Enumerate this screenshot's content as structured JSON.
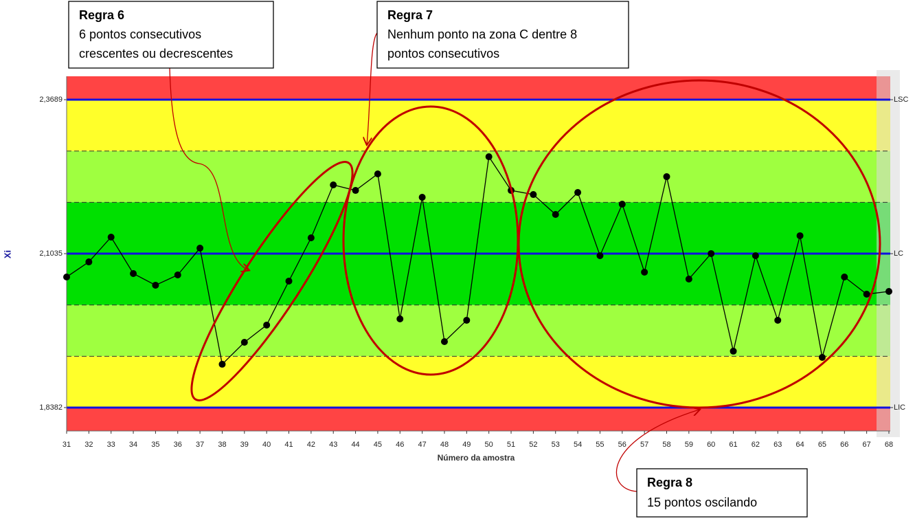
{
  "chart_data": {
    "type": "line",
    "y_label": "Xi",
    "x_label": "Número da amostra",
    "x": [
      31,
      32,
      33,
      34,
      35,
      36,
      37,
      38,
      39,
      40,
      41,
      42,
      43,
      44,
      45,
      46,
      47,
      48,
      49,
      50,
      51,
      52,
      53,
      54,
      55,
      56,
      57,
      58,
      59,
      60,
      61,
      62,
      63,
      64,
      65,
      66,
      67,
      68
    ],
    "series": [
      {
        "color": "#000000",
        "values": [
          2.0633,
          2.0893,
          2.132,
          2.0692,
          2.0491,
          2.0668,
          2.113,
          1.9129,
          1.9507,
          1.9804,
          2.0562,
          2.1308,
          2.222,
          2.2125,
          2.241,
          1.991,
          2.2007,
          1.9519,
          1.9887,
          2.2706,
          2.2125,
          2.2054,
          2.1711,
          2.209,
          2.1,
          2.1888,
          2.0716,
          2.2362,
          2.0597,
          2.1036,
          1.9354,
          2.1,
          1.9887,
          2.1344,
          1.9247,
          2.0633,
          2.0337,
          2.0384
        ]
      }
    ],
    "xlim": [
      31,
      68
    ],
    "xticks": [
      31,
      32,
      33,
      34,
      35,
      36,
      37,
      38,
      39,
      40,
      41,
      42,
      43,
      44,
      45,
      46,
      47,
      48,
      49,
      50,
      51,
      52,
      53,
      54,
      55,
      56,
      57,
      58,
      59,
      60,
      61,
      62,
      63,
      64,
      65,
      66,
      67,
      68
    ],
    "ylim": [
      1.7979,
      2.4092
    ],
    "yticks": [
      {
        "value": 2.3689,
        "label": "2,3689"
      },
      {
        "value": 2.1035,
        "label": "2,1035"
      },
      {
        "value": 1.8382,
        "label": "1,8382"
      }
    ],
    "control_lines": [
      {
        "label": "LSC",
        "value": 2.3689
      },
      {
        "label": "LC",
        "value": 2.1035
      },
      {
        "label": "LIC",
        "value": 1.8382
      }
    ],
    "control_line_color": "#1010e0",
    "zone_lines": [
      2.2804,
      2.192,
      2.015,
      1.9266
    ],
    "zone_colors": {
      "outside": "#ff4444",
      "zone_a": "#ffff2a",
      "zone_b": "#9fff40",
      "zone_c": "#00e000"
    },
    "annotations": [
      {
        "title": "Regra 6",
        "text": [
          "6 pontos consecutivos",
          "crescentes ou decrescentes"
        ]
      },
      {
        "title": "Regra 7",
        "text": [
          "Nenhum ponto na zona C dentre 8",
          "pontos consecutivos"
        ]
      },
      {
        "title": "Regra 8",
        "text": [
          "15 pontos oscilando"
        ]
      }
    ]
  }
}
